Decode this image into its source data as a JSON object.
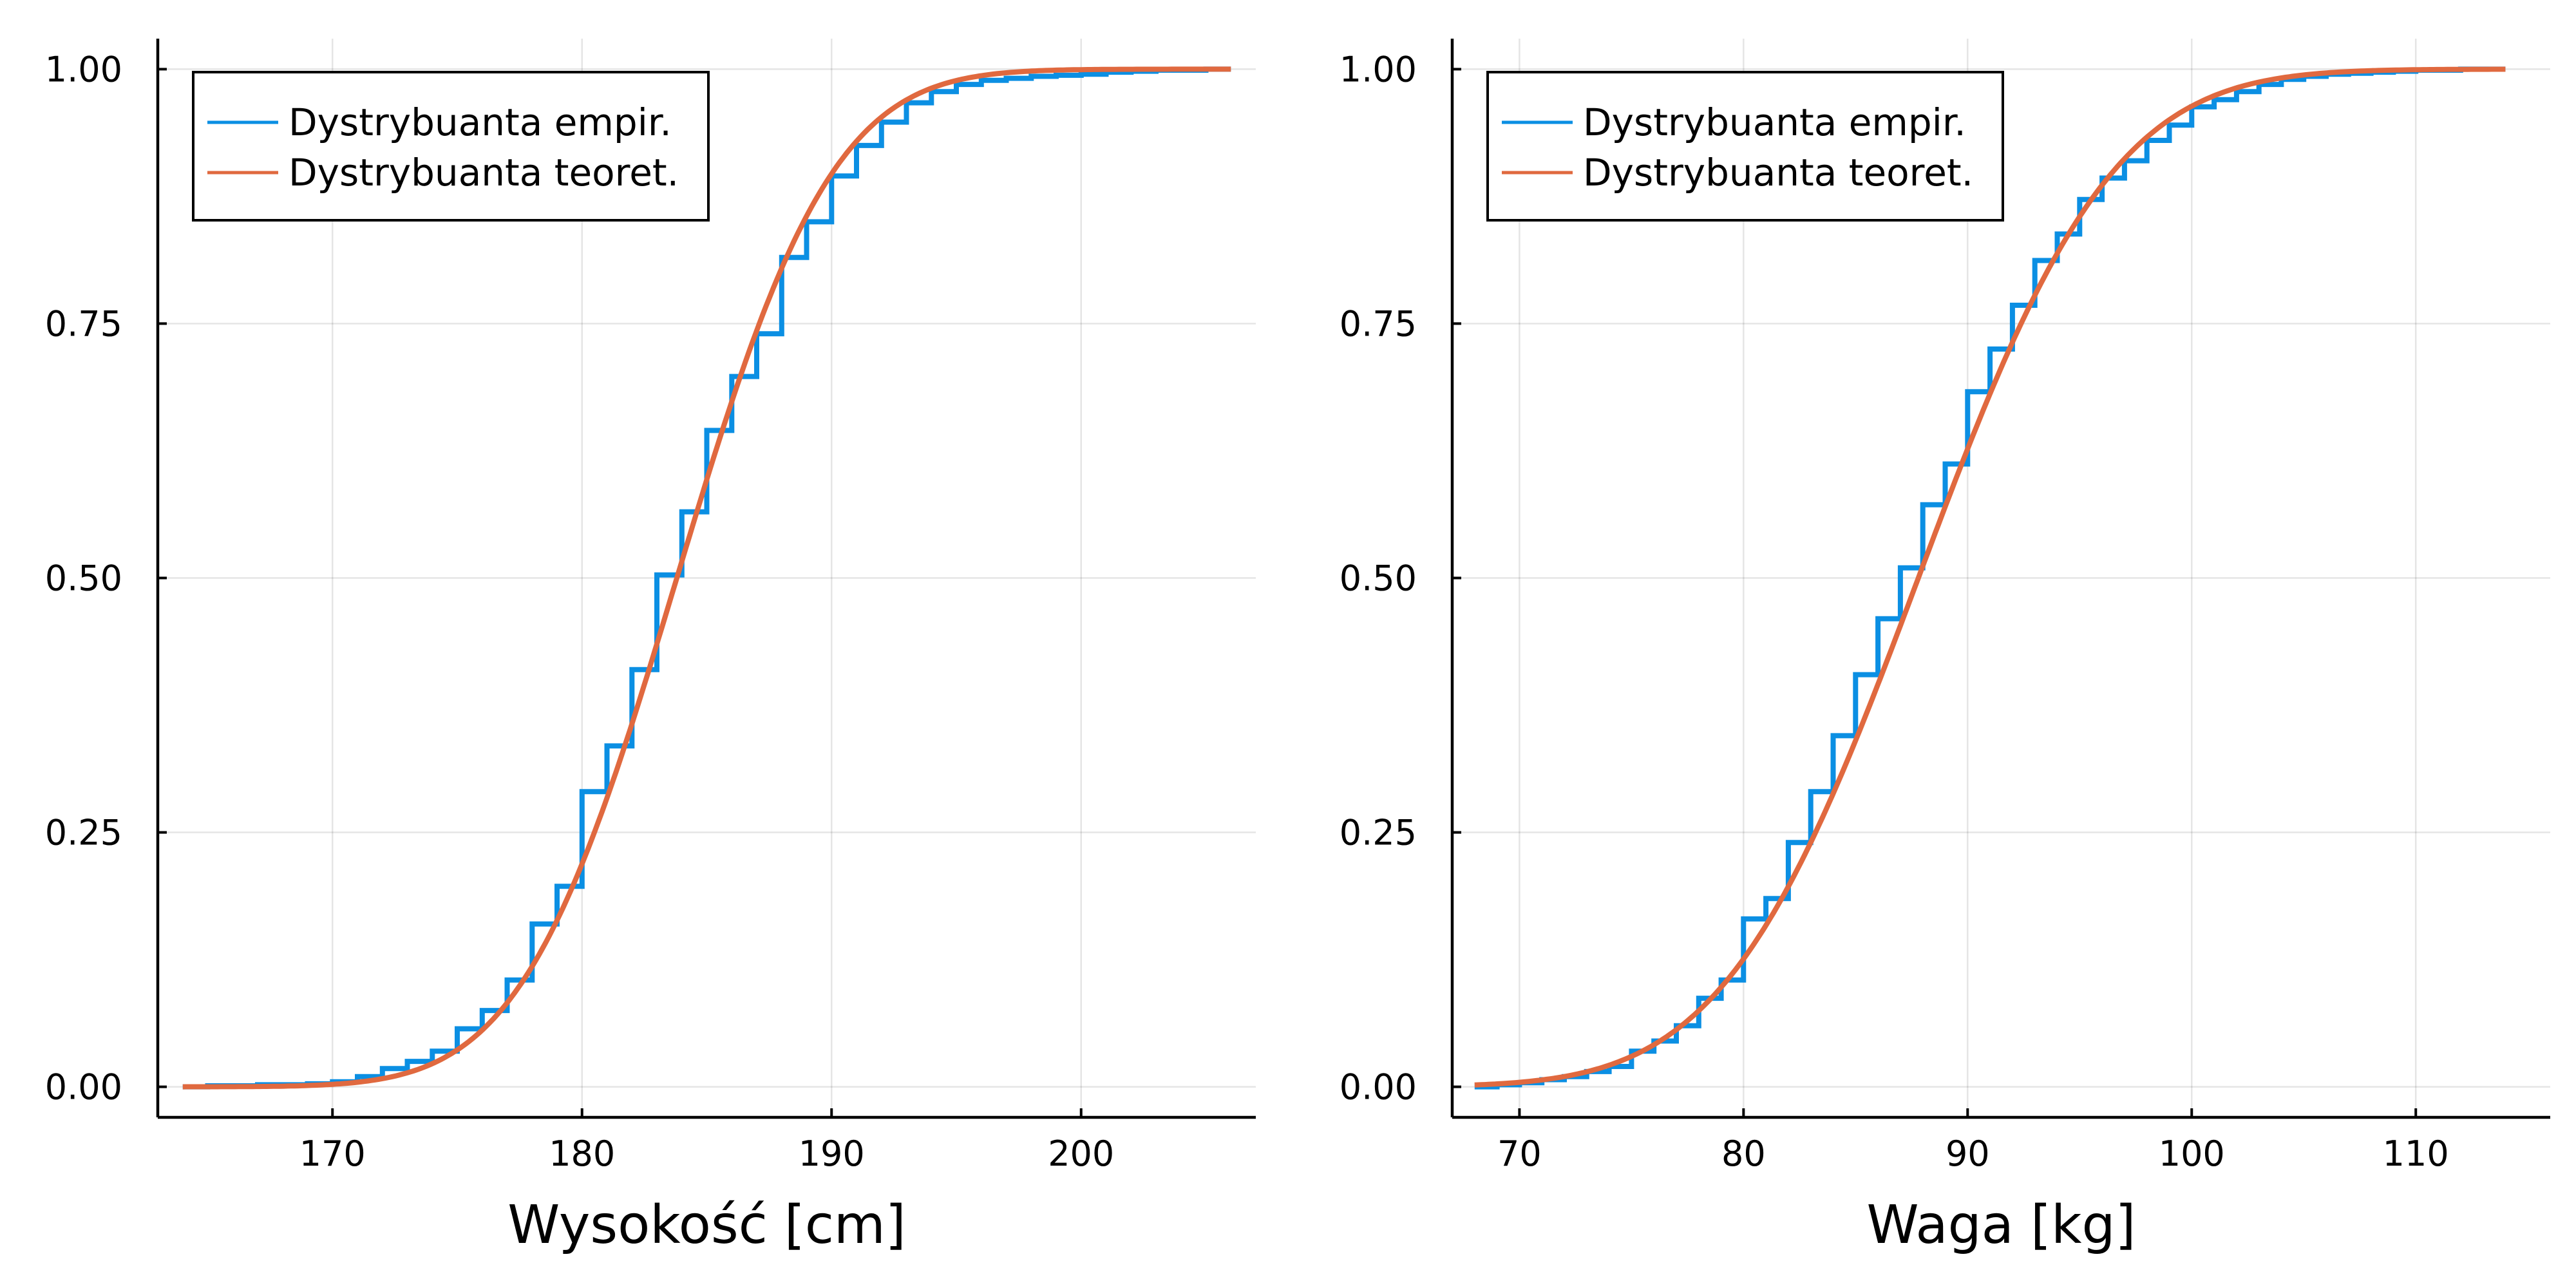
{
  "colors": {
    "empirical": "#0b8fe3",
    "theoretical": "#e0693f",
    "background": "#ffffff",
    "axis": "#000000"
  },
  "chart_data": [
    {
      "type": "line",
      "xlabel": "Wysokość [cm]",
      "ylabel": "",
      "xlim": [
        163,
        207
      ],
      "ylim": [
        -0.03,
        1.03
      ],
      "xticks": [
        170,
        180,
        190,
        200
      ],
      "xtick_labels": [
        "170",
        "180",
        "190",
        "200"
      ],
      "yticks": [
        0,
        0.25,
        0.5,
        0.75,
        1
      ],
      "ytick_labels": [
        "0.00",
        "0.25",
        "0.50",
        "0.75",
        "1.00"
      ],
      "grid": true,
      "legend_position": "top-left",
      "series": [
        {
          "name": "Dystrybuanta empir.",
          "kind": "step",
          "x": [
            164,
            165,
            166,
            167,
            168,
            169,
            170,
            171,
            172,
            173,
            174,
            175,
            176,
            177,
            178,
            179,
            180,
            181,
            182,
            183,
            184,
            185,
            186,
            187,
            188,
            189,
            190,
            191,
            192,
            193,
            194,
            195,
            196,
            197,
            198,
            199,
            200,
            201,
            202,
            203,
            204,
            205,
            206
          ],
          "y": [
            0.0,
            0.001,
            0.001,
            0.002,
            0.002,
            0.003,
            0.005,
            0.01,
            0.018,
            0.025,
            0.035,
            0.057,
            0.075,
            0.105,
            0.16,
            0.197,
            0.29,
            0.335,
            0.41,
            0.503,
            0.565,
            0.645,
            0.698,
            0.74,
            0.815,
            0.85,
            0.895,
            0.925,
            0.948,
            0.967,
            0.978,
            0.985,
            0.989,
            0.991,
            0.993,
            0.994,
            0.995,
            0.997,
            0.998,
            0.999,
            0.999,
            1.0,
            1.0
          ]
        },
        {
          "name": "Dystrybuanta teoret.",
          "kind": "normal-cdf",
          "mean": 183.8,
          "sd": 4.9,
          "x_range": [
            164,
            206
          ]
        }
      ]
    },
    {
      "type": "line",
      "xlabel": "Waga [kg]",
      "ylabel": "",
      "xlim": [
        67,
        116
      ],
      "ylim": [
        -0.03,
        1.03
      ],
      "xticks": [
        70,
        80,
        90,
        100,
        110
      ],
      "xtick_labels": [
        "70",
        "80",
        "90",
        "100",
        "110"
      ],
      "yticks": [
        0,
        0.25,
        0.5,
        0.75,
        1
      ],
      "ytick_labels": [
        "0.00",
        "0.25",
        "0.50",
        "0.75",
        "1.00"
      ],
      "grid": true,
      "legend_position": "top-left",
      "series": [
        {
          "name": "Dystrybuanta empir.",
          "kind": "step",
          "x": [
            68,
            69,
            70,
            71,
            72,
            73,
            74,
            75,
            76,
            77,
            78,
            79,
            80,
            81,
            82,
            83,
            84,
            85,
            86,
            87,
            88,
            89,
            90,
            91,
            92,
            93,
            94,
            95,
            96,
            97,
            98,
            99,
            100,
            101,
            102,
            103,
            104,
            105,
            106,
            107,
            108,
            109,
            110,
            111,
            112,
            113,
            114
          ],
          "y": [
            0.0,
            0.002,
            0.004,
            0.007,
            0.01,
            0.015,
            0.02,
            0.035,
            0.045,
            0.06,
            0.087,
            0.105,
            0.165,
            0.185,
            0.24,
            0.29,
            0.345,
            0.405,
            0.46,
            0.51,
            0.572,
            0.612,
            0.683,
            0.725,
            0.768,
            0.812,
            0.838,
            0.872,
            0.893,
            0.91,
            0.93,
            0.945,
            0.963,
            0.97,
            0.978,
            0.985,
            0.99,
            0.993,
            0.995,
            0.996,
            0.997,
            0.998,
            0.999,
            0.999,
            1.0,
            1.0,
            1.0
          ]
        },
        {
          "name": "Dystrybuanta teoret.",
          "kind": "normal-cdf",
          "mean": 87.8,
          "sd": 6.8,
          "x_range": [
            68,
            114
          ]
        }
      ]
    }
  ]
}
